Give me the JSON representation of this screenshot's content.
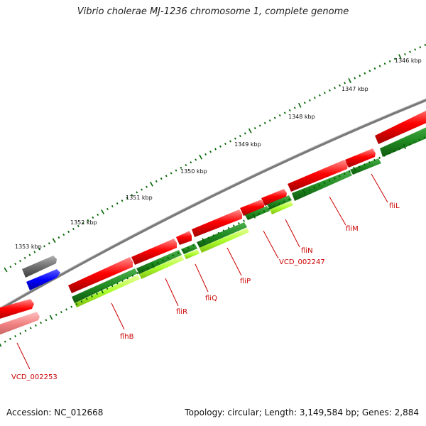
{
  "title": "Vibrio cholerae MJ-1236 chromosome 1, complete genome",
  "footer": {
    "accession": "Accession: NC_012668",
    "summary": "Topology: circular; Length: 3,149,584 bp; Genes: 2,884"
  },
  "ticks": [
    "1346 kbp",
    "1347 kbp",
    "1348 kbp",
    "1349 kbp",
    "1350 kbp",
    "1351 kbp",
    "1352 kbp",
    "1353 kbp"
  ],
  "gene_labels": [
    "fliL",
    "fliM",
    "fliN",
    "VCD_002247",
    "fliP",
    "fliQ",
    "fliR",
    "flhB",
    "VCD_002253"
  ],
  "colors": {
    "backbone": "#808080",
    "cds": "#ff0000",
    "cds_light": "#ff8080",
    "gene_dark": "#228b22",
    "gene_light": "#adff2f",
    "other": "#0000ff",
    "gray_feature": "#808080",
    "tick": "#006400",
    "label": "#cc0000"
  }
}
